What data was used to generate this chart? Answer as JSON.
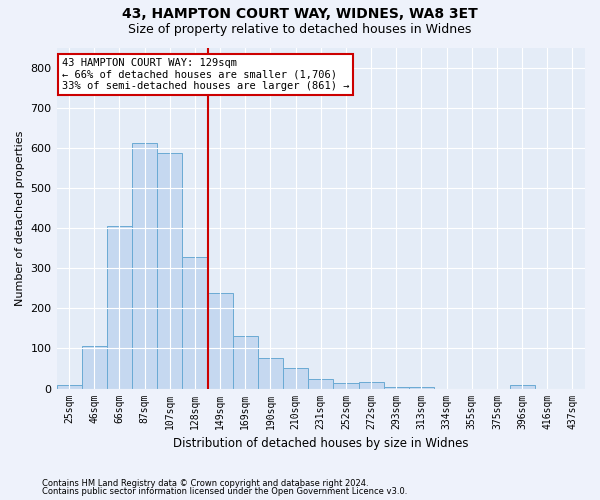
{
  "title_line1": "43, HAMPTON COURT WAY, WIDNES, WA8 3ET",
  "title_line2": "Size of property relative to detached houses in Widnes",
  "xlabel": "Distribution of detached houses by size in Widnes",
  "ylabel": "Number of detached properties",
  "footnote1": "Contains HM Land Registry data © Crown copyright and database right 2024.",
  "footnote2": "Contains public sector information licensed under the Open Government Licence v3.0.",
  "categories": [
    "25sqm",
    "46sqm",
    "66sqm",
    "87sqm",
    "107sqm",
    "128sqm",
    "149sqm",
    "169sqm",
    "190sqm",
    "210sqm",
    "231sqm",
    "252sqm",
    "272sqm",
    "293sqm",
    "313sqm",
    "334sqm",
    "355sqm",
    "375sqm",
    "396sqm",
    "416sqm",
    "437sqm"
  ],
  "values": [
    8,
    107,
    405,
    612,
    587,
    327,
    238,
    132,
    77,
    51,
    25,
    13,
    16,
    5,
    3,
    0,
    0,
    0,
    9,
    0,
    0
  ],
  "bar_color": "#c5d8f0",
  "bar_edge_color": "#6aaad4",
  "marker_bar_idx": 5,
  "marker_label_line1": "43 HAMPTON COURT WAY: 129sqm",
  "marker_label_line2": "← 66% of detached houses are smaller (1,706)",
  "marker_label_line3": "33% of semi-detached houses are larger (861) →",
  "ylim": [
    0,
    850
  ],
  "yticks": [
    0,
    100,
    200,
    300,
    400,
    500,
    600,
    700,
    800
  ],
  "bg_color": "#eef2fb",
  "plot_bg_color": "#e4ecf7",
  "grid_color": "#ffffff",
  "annotation_box_edge": "#cc0000",
  "marker_line_color": "#cc0000",
  "title_fontsize": 10,
  "subtitle_fontsize": 9
}
